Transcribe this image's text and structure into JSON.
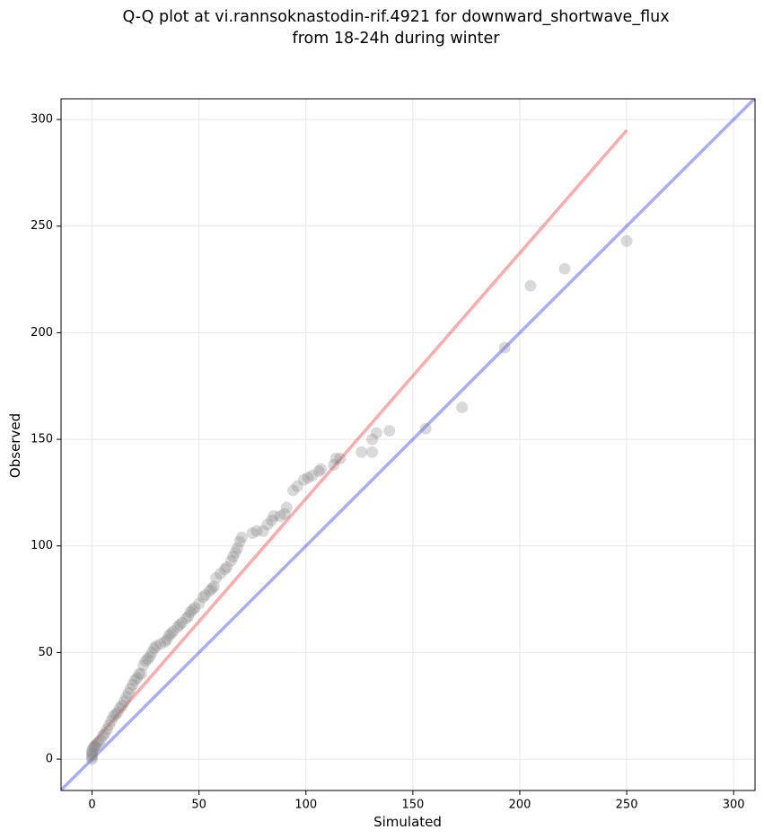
{
  "chart_data": {
    "type": "scatter",
    "title": [
      "Q-Q plot at vi.rannsoknastodin-rif.4921 for downward_shortwave_flux",
      "from 18-24h during winter"
    ],
    "x_label": "Simulated",
    "y_label": "Observed",
    "xlim": [
      -14.5,
      310
    ],
    "ylim": [
      -14.7,
      309.7
    ],
    "xticks": [
      0,
      50,
      100,
      150,
      200,
      250,
      300
    ],
    "yticks": [
      0,
      50,
      100,
      150,
      200,
      250,
      300
    ],
    "grid": true,
    "x": [
      0,
      0,
      0,
      0,
      0,
      0.5,
      1,
      1.5,
      2,
      3,
      4,
      5,
      6,
      7,
      8,
      9,
      10,
      11,
      12,
      13,
      14,
      15,
      16,
      17,
      18,
      19,
      20,
      21,
      22,
      23,
      24,
      25,
      26,
      27,
      28,
      29,
      30,
      32,
      34,
      35,
      36,
      37,
      38,
      40,
      41,
      42,
      44,
      45,
      46,
      47,
      48,
      50,
      52,
      53,
      55,
      56,
      57,
      58,
      60,
      62,
      63,
      65,
      66,
      67,
      68,
      69,
      70,
      75,
      77,
      80,
      82,
      84,
      85,
      88,
      90,
      91,
      94,
      96,
      99,
      101,
      103,
      106,
      107,
      113,
      114,
      116,
      126,
      131,
      131,
      133,
      139,
      156,
      173,
      193,
      205,
      221,
      250
    ],
    "series": [
      {
        "color": "#808080",
        "values": [
          0,
          1,
          2,
          3,
          4,
          5,
          6,
          6,
          7,
          8,
          9,
          11,
          12,
          14,
          16,
          18,
          20,
          21,
          22,
          24,
          25,
          27,
          29,
          31,
          33,
          35,
          37,
          38,
          40,
          40,
          44,
          46,
          47,
          48,
          50,
          52,
          53,
          54,
          55,
          56,
          58,
          59,
          60,
          62,
          63,
          64,
          66,
          67,
          69,
          70,
          71,
          73,
          76,
          77,
          79,
          80,
          81,
          85,
          87,
          89,
          90,
          93,
          95,
          97,
          99,
          102,
          104,
          106,
          107,
          107,
          110,
          112,
          114,
          114,
          115,
          118,
          126,
          128,
          131,
          132,
          133,
          135,
          136,
          138,
          141,
          141,
          144,
          144,
          150,
          153,
          154,
          155,
          165,
          193,
          222,
          230,
          243
        ]
      }
    ],
    "reference_lines": [
      {
        "color": "#ff0000",
        "x": [
          0,
          250
        ],
        "y": [
          7,
          295
        ]
      },
      {
        "color": "#0000ff",
        "x": [
          -14.5,
          310
        ],
        "y": [
          -14.5,
          310
        ]
      }
    ]
  }
}
